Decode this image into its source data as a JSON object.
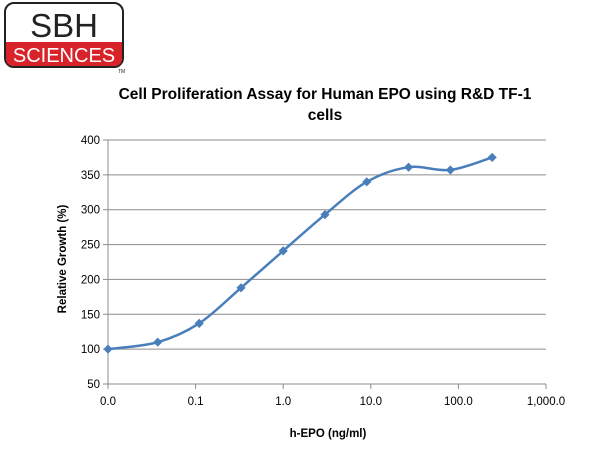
{
  "logo": {
    "line1": "SBH",
    "line2": "SCIENCES",
    "tm": "TM"
  },
  "chart_data": {
    "type": "line",
    "title": "Cell Proliferation Assay for Human EPO using R&D TF-1 cells",
    "xlabel": "h-EPO (ng/ml)",
    "ylabel": "Relative Growth (%)",
    "xscale": "log",
    "x_tick_labels": [
      "0.0",
      "0.1",
      "1.0",
      "10.0",
      "100.0",
      "1,000.0"
    ],
    "ylim": [
      50,
      400
    ],
    "y_ticks": [
      50,
      100,
      150,
      200,
      250,
      300,
      350,
      400
    ],
    "grid": "horizontal",
    "legend": "none",
    "series": [
      {
        "color": "#4a7ebb",
        "marker": "diamond",
        "x": [
          0.01,
          0.037,
          0.11,
          0.33,
          1.0,
          3.0,
          9.0,
          27.0,
          81.0,
          243.0
        ],
        "y": [
          100,
          110,
          137,
          188,
          241,
          293,
          340,
          361,
          357,
          375
        ]
      }
    ]
  }
}
